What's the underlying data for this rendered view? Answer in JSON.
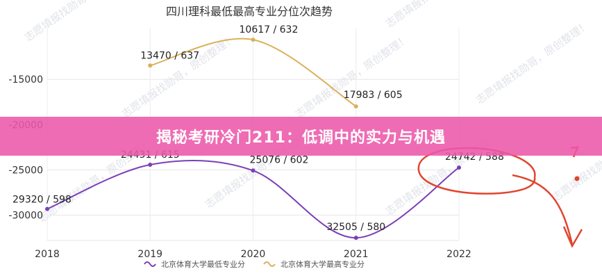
{
  "chart_data": {
    "type": "line",
    "title": "四川理科最低最高专业分位次趋势",
    "categories": [
      "2018",
      "2019",
      "2020",
      "2021",
      "2022"
    ],
    "y_ticks": [
      "-15000",
      "-20000",
      "-25000",
      "-30000"
    ],
    "y_tick_values": [
      -15000,
      -20000,
      -25000,
      -30000
    ],
    "ylim": [
      -32800,
      -9300
    ],
    "y_inverted_display": "negative rank plotted upward",
    "series": [
      {
        "name": "北京体育大学最低专业分",
        "color": "#7b3fb5",
        "values": [
          -29320,
          -24431,
          -25076,
          -32505,
          -24742
        ],
        "labels": [
          "29320 / 598",
          "24431 / 615",
          "25076 / 602",
          "32505 / 580",
          "24742 / 588"
        ]
      },
      {
        "name": "北京体育大学最高专业分",
        "color": "#d9b15a",
        "values": [
          null,
          -13470,
          -10617,
          -17983,
          null
        ],
        "labels": [
          null,
          "13470 / 637",
          "10617 / 632",
          "17983 / 605",
          null
        ]
      }
    ],
    "grid": true,
    "legend": "bottom"
  },
  "banner": {
    "text": "揭秘考研冷门211：低调中的实力与机遇"
  },
  "watermark": {
    "text": "志愿填报找勋哥，原创整理！"
  },
  "colors": {
    "banner": "#ec58aa",
    "annotation": "#e0452e"
  }
}
